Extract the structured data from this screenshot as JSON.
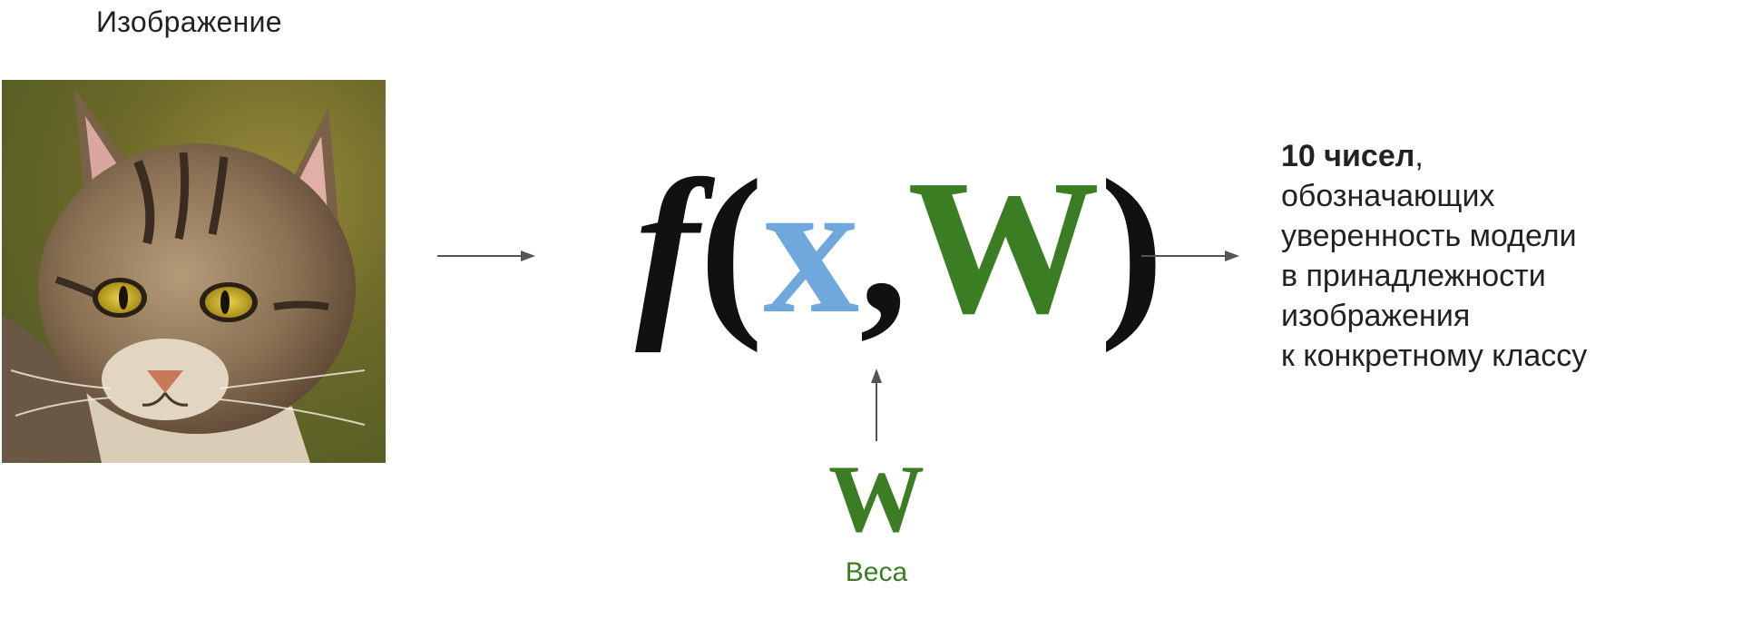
{
  "image_label": "Изображение",
  "formula": {
    "function": "f",
    "open_paren": "(",
    "input_symbol": "x",
    "comma": ",",
    "weights_symbol": "W",
    "close_paren": ")"
  },
  "weights": {
    "symbol": "W",
    "label": "Веса"
  },
  "output": {
    "bold": "10 чисел",
    "bold_suffix": ",",
    "lines": [
      "обозначающих",
      "уверенность модели",
      "в принадлежности",
      "изображения",
      "к конкретному классу"
    ]
  },
  "colors": {
    "input": "#6fa8dc",
    "weights": "#3a7d22",
    "text": "#222222",
    "arrow": "#555555"
  }
}
